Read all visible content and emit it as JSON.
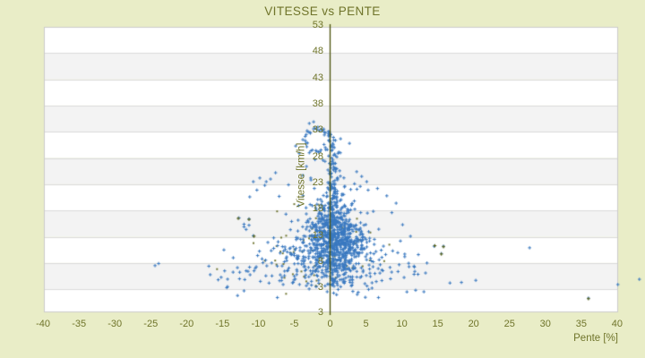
{
  "title": "VITESSE vs PENTE",
  "colors": {
    "background": "#e9edc7",
    "band_light": "#ffffff",
    "band_dark": "#f3f3f3",
    "gridline": "#dadada",
    "plot_border": "#cccccc",
    "axis_line": "#4b530c",
    "text": "#6f742a",
    "point": "#3a79c0",
    "dark_point": "#5d6416"
  },
  "chart_data": {
    "type": "scatter",
    "title": "VITESSE vs PENTE",
    "xlabel": "Pente [%]",
    "ylabel": "Vitesse [km/h]",
    "xlim": [
      -40,
      40
    ],
    "ylim": [
      3,
      53
    ],
    "x_ticks": [
      -40,
      -35,
      -30,
      -25,
      -20,
      -15,
      -10,
      -5,
      0,
      5,
      10,
      15,
      20,
      25,
      30,
      35,
      40
    ],
    "y_ticks": [
      53,
      48,
      43,
      38,
      33,
      28,
      23,
      18,
      13,
      8,
      3
    ],
    "y_axis_end_label": "3",
    "grid": "horizontal-bands-alternating",
    "legend": "none",
    "marker": "plus",
    "series_name": "vitesse-vs-pente-points",
    "point_cloud": {
      "seed": 42,
      "core": {
        "n": 500,
        "cx": 0.6,
        "cy": 12.2,
        "sx": 2.0,
        "sy": 3.4,
        "ymin": 1.5,
        "ymax": 30
      },
      "fan": {
        "n": 430,
        "ymean": 11.5,
        "ysd": 5.0,
        "ymin": 1.2,
        "ymax": 23,
        "base_w": 1.6,
        "widen_below": 18,
        "widen_rate": 0.62,
        "left_skew": 1.3,
        "xshift": 0.3,
        "xmin": -17,
        "xmax": 14
      },
      "column": {
        "n": 150,
        "cx": 0.35,
        "sx": 0.5,
        "ybase": 3.5,
        "yspan": 29,
        "pow": 1.35
      },
      "upper_column": {
        "n": 26,
        "cx": 0.55,
        "sx": 0.4,
        "ymin": 20.5,
        "ymax": 27
      },
      "rays": {
        "origin": [
          0,
          3.2
        ],
        "jitter": 0.5,
        "points_per_ray": 9,
        "ends": [
          [
            -16.5,
            5.5
          ],
          [
            -13,
            7
          ],
          [
            -10.5,
            9.5
          ],
          [
            -8,
            13
          ],
          [
            -6,
            17
          ],
          [
            -4,
            21
          ],
          [
            -2.7,
            24.5
          ],
          [
            2.2,
            25
          ],
          [
            3.4,
            21.5
          ],
          [
            5,
            17.5
          ],
          [
            6.5,
            14
          ],
          [
            8.5,
            10.5
          ],
          [
            10.5,
            8
          ],
          [
            12.5,
            6
          ]
        ]
      },
      "ring": {
        "n": 36,
        "cx": -1.6,
        "cy": 31.4,
        "rx": 1.75,
        "ry": 2.1,
        "jitter": 0.15
      },
      "dark_specks": {
        "n": 60,
        "cx": -1.0,
        "cy": 9.5,
        "sx": 4.5,
        "sy": 4.0,
        "ymin": 1.5,
        "ymax": 22
      }
    },
    "explicit_points": [
      [
        -2.9,
        34.6
      ],
      [
        -2.3,
        34.9
      ],
      [
        -1.7,
        33.9
      ],
      [
        -3.2,
        33.2
      ],
      [
        -0.1,
        33.0
      ],
      [
        -0.8,
        32.4
      ],
      [
        -3.8,
        31.5
      ],
      [
        2.7,
        30.8
      ],
      [
        -4.8,
        30.3
      ],
      [
        -4.3,
        28.9
      ],
      [
        -2.1,
        27.7
      ],
      [
        -3.3,
        26.4
      ],
      [
        -3.8,
        24.7
      ],
      [
        -2.7,
        24.2
      ],
      [
        -0.6,
        29.6
      ],
      [
        0.4,
        30.1
      ],
      [
        -2.9,
        29.0
      ],
      [
        -0.2,
        28.4
      ],
      [
        -1.0,
        27.6
      ],
      [
        1.1,
        28.9
      ],
      [
        3.7,
        25.4
      ],
      [
        4.4,
        24.5
      ],
      [
        5.1,
        23.5
      ],
      [
        4.2,
        22.6
      ],
      [
        5.3,
        21.9
      ],
      [
        3.4,
        23.1
      ],
      [
        6.6,
        22.2
      ],
      [
        7.9,
        20.8
      ],
      [
        9.2,
        19.4
      ],
      [
        8.6,
        17.6
      ],
      [
        10.1,
        15.3
      ],
      [
        11.2,
        13.1
      ],
      [
        9.8,
        12.2
      ],
      [
        12.3,
        9.6
      ],
      [
        13.5,
        8.0
      ],
      [
        11.8,
        6.4
      ],
      [
        -10.7,
        23.5
      ],
      [
        -9.8,
        24.2
      ],
      [
        -9.1,
        22.8
      ],
      [
        -8.3,
        24.0
      ],
      [
        -10.2,
        21.9
      ],
      [
        -7.6,
        25.2
      ],
      [
        -11.2,
        20.6
      ],
      [
        -7.1,
        20.7
      ],
      [
        -5.8,
        22.9
      ],
      [
        -8.9,
        23.5
      ],
      [
        -16.9,
        7.4
      ],
      [
        -14.7,
        6.5
      ],
      [
        -14.3,
        3.5
      ],
      [
        -12.7,
        16.6
      ],
      [
        -12.0,
        15.4
      ],
      [
        -12.0,
        14.9
      ],
      [
        -11.7,
        14.4
      ],
      [
        -11.3,
        15.2
      ],
      [
        -11.3,
        16.4
      ],
      [
        -10.7,
        13.2
      ],
      [
        -12.9,
        1.8
      ],
      [
        -12.0,
        2.7
      ],
      [
        -14.4,
        3.3
      ],
      [
        -24.4,
        7.5
      ],
      [
        -23.9,
        7.9
      ],
      [
        -13.5,
        9.0
      ],
      [
        -14.8,
        10.5
      ],
      [
        14.5,
        11.2
      ],
      [
        15.8,
        11.2
      ],
      [
        15.5,
        9.8
      ],
      [
        10.4,
        9.7
      ],
      [
        10.4,
        9.2
      ],
      [
        11.0,
        7.3
      ],
      [
        11.7,
        7.4
      ],
      [
        13.3,
        6.1
      ],
      [
        16.7,
        4.2
      ],
      [
        18.3,
        4.3
      ],
      [
        20.3,
        4.7
      ],
      [
        27.8,
        10.9
      ],
      [
        10.7,
        2.5
      ],
      [
        36.0,
        1.3
      ],
      [
        40.1,
        3.9
      ],
      [
        43.1,
        4.9
      ]
    ],
    "dark_points": [
      [
        15.8,
        11.1
      ],
      [
        15.5,
        9.7
      ],
      [
        -11.3,
        16.3
      ],
      [
        -10.6,
        13.1
      ],
      [
        36.0,
        1.2
      ],
      [
        14.6,
        11.3
      ],
      [
        -12.8,
        16.5
      ]
    ]
  }
}
